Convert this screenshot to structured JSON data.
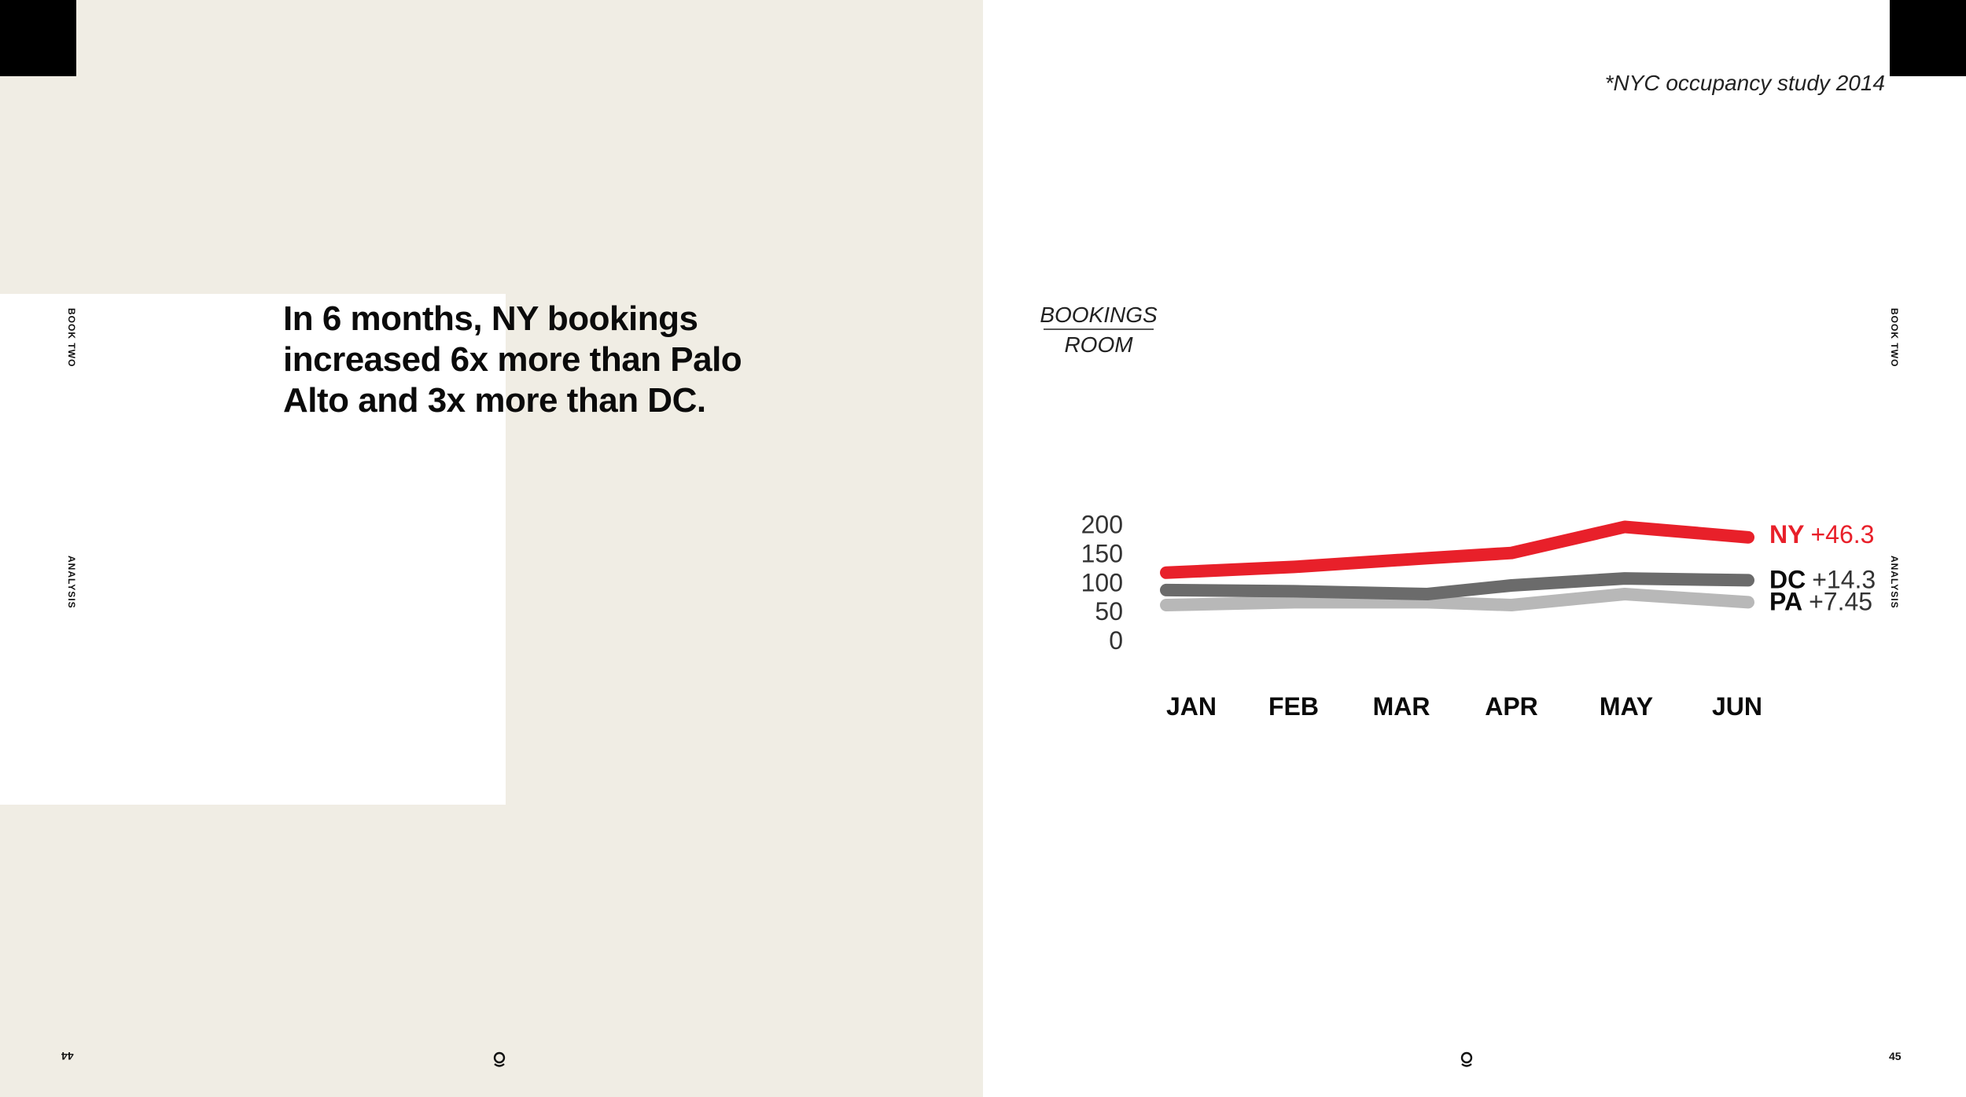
{
  "left_page": {
    "headline": "In 6 months, NY bookings increased 6x more than Palo Alto and 3x more than DC.",
    "side_label_top": "BOOK TWO",
    "side_label_bottom": "ANALYSIS",
    "page_number": "44",
    "logo_icon": "brand-mark-icon"
  },
  "right_page": {
    "source_note": "*NYC occupancy study 2014",
    "side_label_top": "BOOK TWO",
    "side_label_bottom": "ANALYSIS",
    "page_number": "45",
    "logo_icon": "brand-mark-icon"
  },
  "colors": {
    "left_background": "#f0ede4",
    "ny": "#e8202a",
    "dc": "#6b6b6b",
    "pa": "#b8b8b8"
  },
  "chart_data": {
    "type": "line",
    "ylabel_top": "BOOKINGS",
    "ylabel_bottom": "ROOM",
    "categories": [
      "JAN",
      "FEB",
      "MAR",
      "APR",
      "MAY",
      "JUN"
    ],
    "yticks": [
      200,
      150,
      100,
      50,
      0
    ],
    "ylim": [
      0,
      200
    ],
    "series": [
      {
        "name": "NY",
        "change": "+46.3",
        "color": "#e8202a",
        "values": [
          117,
          127,
          142,
          151,
          196,
          178
        ]
      },
      {
        "name": "DC",
        "change": "+14.3",
        "color": "#6b6b6b",
        "values": [
          87,
          85,
          80,
          95,
          107,
          104
        ]
      },
      {
        "name": "PA",
        "change": "+7.45",
        "color": "#b8b8b8",
        "values": [
          61,
          66,
          66,
          61,
          80,
          66
        ]
      }
    ]
  }
}
